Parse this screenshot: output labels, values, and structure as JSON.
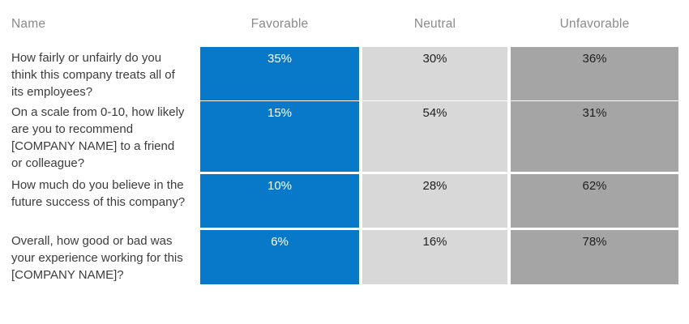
{
  "colors": {
    "favorable": "#0878C9",
    "neutral": "#D8D8D8",
    "unfavorable": "#A5A5A5",
    "header_text": "#8A8A8A",
    "question_text": "#3C3C3C",
    "value_text_on_gray": "#1F1F1F",
    "value_text_on_blue": "#FFFFFF"
  },
  "table": {
    "columns": [
      {
        "key": "name",
        "label": "Name"
      },
      {
        "key": "favorable",
        "label": "Favorable"
      },
      {
        "key": "neutral",
        "label": "Neutral"
      },
      {
        "key": "unfavorable",
        "label": "Unfavorable"
      }
    ],
    "rows": [
      {
        "name": "How fairly or unfairly do you think this company treats all of its employees?",
        "favorable": "35%",
        "neutral": "30%",
        "unfavorable": "36%"
      },
      {
        "name": "On a scale from 0-10, how likely are you to recommend [COMPANY NAME] to a friend or colleague?",
        "favorable": "15%",
        "neutral": "54%",
        "unfavorable": "31%"
      },
      {
        "name": "How much do you believe in the future success of this company?",
        "favorable": "10%",
        "neutral": "28%",
        "unfavorable": "62%"
      },
      {
        "name": "Overall, how good or bad was your experience working for this [COMPANY NAME]?",
        "favorable": "6%",
        "neutral": "16%",
        "unfavorable": "78%"
      }
    ]
  },
  "chart_data": {
    "type": "table",
    "title": "",
    "categories": [
      "How fairly or unfairly do you think this company treats all of its employees?",
      "On a scale from 0-10, how likely are you to recommend [COMPANY NAME] to a friend or colleague?",
      "How much do you believe in the future success of this company?",
      "Overall, how good or bad was your experience working for this [COMPANY NAME]?"
    ],
    "series": [
      {
        "name": "Favorable",
        "values": [
          35,
          15,
          10,
          6
        ],
        "unit": "%",
        "color": "#0878C9"
      },
      {
        "name": "Neutral",
        "values": [
          30,
          54,
          28,
          16
        ],
        "unit": "%",
        "color": "#D8D8D8"
      },
      {
        "name": "Unfavorable",
        "values": [
          36,
          31,
          62,
          78
        ],
        "unit": "%",
        "color": "#A5A5A5"
      }
    ],
    "legend_position": "column-headers",
    "grid": false
  }
}
